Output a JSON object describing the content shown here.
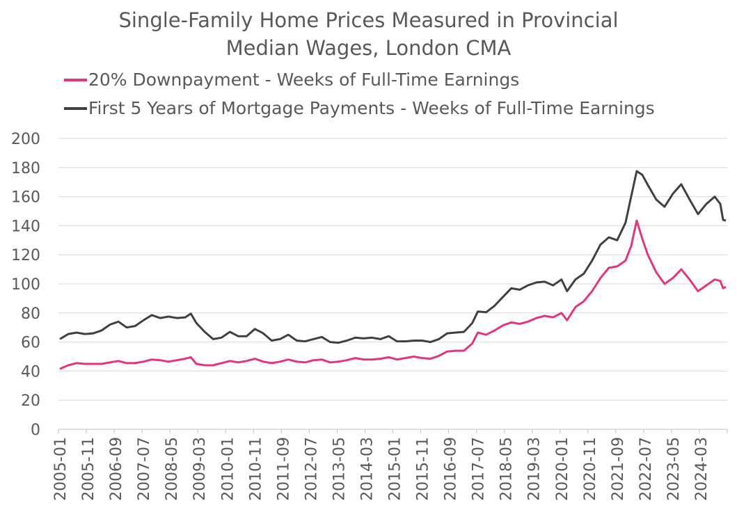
{
  "chart_data": {
    "type": "line",
    "title_line1": "Single-Family Home Prices Measured in Provincial",
    "title_line2": "Median Wages, London CMA",
    "xlabel": "",
    "ylabel": "",
    "ylim": [
      0,
      200
    ],
    "yticks": [
      0,
      20,
      40,
      60,
      80,
      100,
      120,
      140,
      160,
      180,
      200
    ],
    "xtick_labels": [
      "2005-01",
      "2005-11",
      "2006-09",
      "2007-07",
      "2008-05",
      "2009-03",
      "2010-01",
      "2010-11",
      "2011-09",
      "2012-07",
      "2013-05",
      "2014-03",
      "2015-01",
      "2015-11",
      "2016-09",
      "2017-07",
      "2018-05",
      "2019-03",
      "2020-01",
      "2020-11",
      "2021-09",
      "2022-07",
      "2023-05",
      "2024-03"
    ],
    "grid": "horizontal",
    "legend_position": "top",
    "x_start": "2005-01",
    "x_end": "2024-12",
    "series": [
      {
        "name": "20% Downpayment - Weeks of Full-Time Earnings",
        "color": "#e3357f",
        "points": [
          [
            "2005-01",
            41.5
          ],
          [
            "2005-04",
            44
          ],
          [
            "2005-07",
            45.5
          ],
          [
            "2005-10",
            45
          ],
          [
            "2006-01",
            45
          ],
          [
            "2006-04",
            45
          ],
          [
            "2006-07",
            46
          ],
          [
            "2006-10",
            47
          ],
          [
            "2007-01",
            45.5
          ],
          [
            "2007-04",
            45.5
          ],
          [
            "2007-07",
            46.5
          ],
          [
            "2007-10",
            48
          ],
          [
            "2008-01",
            47.5
          ],
          [
            "2008-04",
            46.5
          ],
          [
            "2008-07",
            47.5
          ],
          [
            "2008-10",
            48.5
          ],
          [
            "2008-12",
            49.5
          ],
          [
            "2009-02",
            45
          ],
          [
            "2009-05",
            44
          ],
          [
            "2009-08",
            44
          ],
          [
            "2009-11",
            45.5
          ],
          [
            "2010-02",
            47
          ],
          [
            "2010-05",
            46
          ],
          [
            "2010-08",
            47
          ],
          [
            "2010-11",
            48.5
          ],
          [
            "2011-02",
            46.5
          ],
          [
            "2011-05",
            45.5
          ],
          [
            "2011-08",
            46.5
          ],
          [
            "2011-11",
            48
          ],
          [
            "2012-02",
            46.5
          ],
          [
            "2012-05",
            46
          ],
          [
            "2012-08",
            47.5
          ],
          [
            "2012-11",
            48
          ],
          [
            "2013-02",
            46
          ],
          [
            "2013-05",
            46.5
          ],
          [
            "2013-08",
            47.5
          ],
          [
            "2013-11",
            49
          ],
          [
            "2014-02",
            48
          ],
          [
            "2014-05",
            48
          ],
          [
            "2014-08",
            48.5
          ],
          [
            "2014-11",
            49.5
          ],
          [
            "2015-02",
            48
          ],
          [
            "2015-05",
            49
          ],
          [
            "2015-08",
            50
          ],
          [
            "2015-11",
            49
          ],
          [
            "2016-02",
            48.5
          ],
          [
            "2016-05",
            50.5
          ],
          [
            "2016-08",
            53.5
          ],
          [
            "2016-11",
            54
          ],
          [
            "2017-02",
            54
          ],
          [
            "2017-05",
            59
          ],
          [
            "2017-07",
            66.5
          ],
          [
            "2017-10",
            65
          ],
          [
            "2018-01",
            68
          ],
          [
            "2018-04",
            71.5
          ],
          [
            "2018-07",
            73.5
          ],
          [
            "2018-10",
            72.5
          ],
          [
            "2019-01",
            74
          ],
          [
            "2019-04",
            76.5
          ],
          [
            "2019-07",
            78
          ],
          [
            "2019-10",
            77
          ],
          [
            "2020-01",
            80
          ],
          [
            "2020-03",
            75
          ],
          [
            "2020-06",
            84
          ],
          [
            "2020-09",
            88
          ],
          [
            "2020-12",
            95
          ],
          [
            "2021-03",
            104
          ],
          [
            "2021-06",
            111
          ],
          [
            "2021-09",
            112
          ],
          [
            "2021-12",
            116
          ],
          [
            "2022-02",
            126
          ],
          [
            "2022-04",
            143.5
          ],
          [
            "2022-06",
            131
          ],
          [
            "2022-08",
            120
          ],
          [
            "2022-11",
            108
          ],
          [
            "2023-02",
            100
          ],
          [
            "2023-05",
            104
          ],
          [
            "2023-08",
            110
          ],
          [
            "2023-11",
            103
          ],
          [
            "2024-02",
            95
          ],
          [
            "2024-05",
            99
          ],
          [
            "2024-08",
            103
          ],
          [
            "2024-10",
            102
          ],
          [
            "2024-11",
            97
          ],
          [
            "2024-12",
            98
          ]
        ]
      },
      {
        "name": "First 5 Years of Mortgage Payments - Weeks of Full-Time Earnings",
        "color": "#404040",
        "points": [
          [
            "2005-01",
            62
          ],
          [
            "2005-04",
            65.5
          ],
          [
            "2005-07",
            66.5
          ],
          [
            "2005-10",
            65.5
          ],
          [
            "2006-01",
            66
          ],
          [
            "2006-04",
            68
          ],
          [
            "2006-07",
            72
          ],
          [
            "2006-10",
            74
          ],
          [
            "2007-01",
            70
          ],
          [
            "2007-04",
            71
          ],
          [
            "2007-07",
            75
          ],
          [
            "2007-10",
            78.5
          ],
          [
            "2008-01",
            76.5
          ],
          [
            "2008-04",
            77.5
          ],
          [
            "2008-07",
            76.5
          ],
          [
            "2008-10",
            77
          ],
          [
            "2008-12",
            79.5
          ],
          [
            "2009-02",
            73
          ],
          [
            "2009-05",
            67
          ],
          [
            "2009-08",
            62
          ],
          [
            "2009-11",
            63
          ],
          [
            "2010-02",
            67
          ],
          [
            "2010-05",
            64
          ],
          [
            "2010-08",
            64
          ],
          [
            "2010-11",
            69
          ],
          [
            "2011-02",
            66
          ],
          [
            "2011-05",
            61
          ],
          [
            "2011-08",
            62
          ],
          [
            "2011-11",
            65
          ],
          [
            "2012-02",
            61
          ],
          [
            "2012-05",
            60.5
          ],
          [
            "2012-08",
            62
          ],
          [
            "2012-11",
            63.5
          ],
          [
            "2013-02",
            60
          ],
          [
            "2013-05",
            59.5
          ],
          [
            "2013-08",
            61
          ],
          [
            "2013-11",
            63
          ],
          [
            "2014-02",
            62.5
          ],
          [
            "2014-05",
            63
          ],
          [
            "2014-08",
            62
          ],
          [
            "2014-11",
            64
          ],
          [
            "2015-02",
            60.5
          ],
          [
            "2015-05",
            60.5
          ],
          [
            "2015-08",
            61
          ],
          [
            "2015-11",
            61
          ],
          [
            "2016-02",
            60
          ],
          [
            "2016-05",
            62
          ],
          [
            "2016-08",
            66
          ],
          [
            "2016-11",
            66.5
          ],
          [
            "2017-02",
            67
          ],
          [
            "2017-05",
            73
          ],
          [
            "2017-07",
            81
          ],
          [
            "2017-10",
            80.5
          ],
          [
            "2018-01",
            85
          ],
          [
            "2018-04",
            91
          ],
          [
            "2018-07",
            97
          ],
          [
            "2018-10",
            96
          ],
          [
            "2019-01",
            99
          ],
          [
            "2019-04",
            101
          ],
          [
            "2019-07",
            101.5
          ],
          [
            "2019-10",
            99
          ],
          [
            "2020-01",
            103
          ],
          [
            "2020-03",
            95
          ],
          [
            "2020-06",
            103
          ],
          [
            "2020-09",
            107
          ],
          [
            "2020-12",
            116
          ],
          [
            "2021-03",
            127
          ],
          [
            "2021-06",
            132
          ],
          [
            "2021-09",
            130
          ],
          [
            "2021-12",
            142
          ],
          [
            "2022-02",
            160
          ],
          [
            "2022-04",
            177.5
          ],
          [
            "2022-06",
            175
          ],
          [
            "2022-08",
            168
          ],
          [
            "2022-11",
            158
          ],
          [
            "2023-02",
            153
          ],
          [
            "2023-05",
            162
          ],
          [
            "2023-08",
            168.5
          ],
          [
            "2023-11",
            158
          ],
          [
            "2024-02",
            148
          ],
          [
            "2024-05",
            155
          ],
          [
            "2024-08",
            160
          ],
          [
            "2024-10",
            155
          ],
          [
            "2024-11",
            144
          ],
          [
            "2024-12",
            143.5
          ]
        ]
      }
    ]
  }
}
